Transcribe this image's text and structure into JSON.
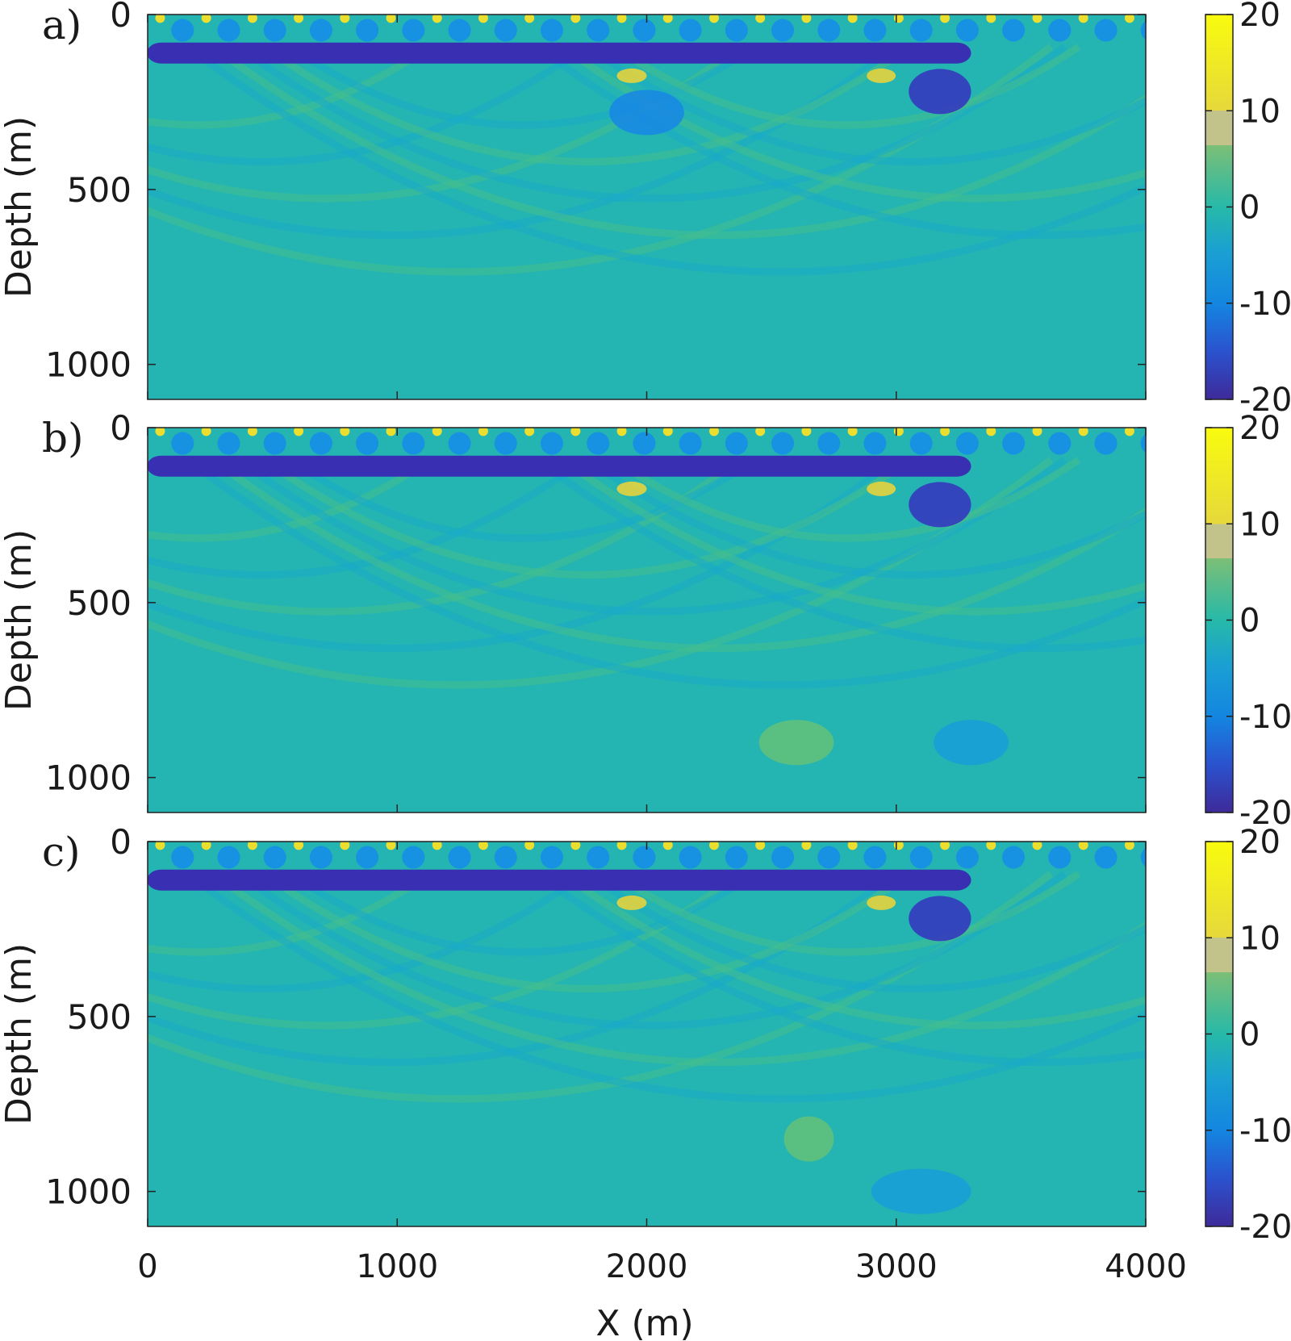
{
  "chart_data": [
    {
      "type": "heatmap",
      "panel_label": "a)",
      "title": "",
      "xlabel": "",
      "ylabel": "Depth (m)",
      "xlim": [
        0,
        4000
      ],
      "ylim": [
        0,
        1100
      ],
      "y_reversed": true,
      "x_ticks": [
        0,
        1000,
        2000,
        3000,
        4000
      ],
      "x_tick_labels_shown": false,
      "y_ticks": [
        0,
        500,
        1000
      ],
      "y_tick_labels": [
        "0",
        "500",
        "1000"
      ],
      "colorbar": {
        "range": [
          -20,
          20
        ],
        "ticks": [
          20,
          10,
          0,
          -10,
          -20
        ],
        "tick_labels": [
          "20",
          "10",
          "0",
          "-10",
          "-20"
        ],
        "colormap": "parula"
      },
      "features": [
        {
          "kind": "near-surface strong negative band",
          "x": [
            450,
            3300
          ],
          "z": [
            80,
            140
          ],
          "value": -19
        },
        {
          "kind": "surface source spots",
          "z": 10,
          "value": 15
        },
        {
          "kind": "positive lens",
          "x": [
            1880,
            2000
          ],
          "z": 175,
          "value": 13
        },
        {
          "kind": "positive lens",
          "x": [
            2920,
            2960
          ],
          "z": 175,
          "value": 13
        },
        {
          "kind": "negative anomaly",
          "x": [
            3050,
            3300
          ],
          "z": 220,
          "value": -18
        },
        {
          "kind": "negative anomaly",
          "x": [
            1850,
            2150
          ],
          "z": 280,
          "value": -9
        },
        {
          "kind": "smooth background",
          "value": 0
        }
      ]
    },
    {
      "type": "heatmap",
      "panel_label": "b)",
      "title": "",
      "xlabel": "",
      "ylabel": "Depth (m)",
      "xlim": [
        0,
        4000
      ],
      "ylim": [
        0,
        1100
      ],
      "y_reversed": true,
      "x_ticks": [
        0,
        1000,
        2000,
        3000,
        4000
      ],
      "x_tick_labels_shown": false,
      "y_ticks": [
        0,
        500,
        1000
      ],
      "y_tick_labels": [
        "0",
        "500",
        "1000"
      ],
      "colorbar": {
        "range": [
          -20,
          20
        ],
        "ticks": [
          20,
          10,
          0,
          -10,
          -20
        ],
        "tick_labels": [
          "20",
          "10",
          "0",
          "-10",
          "-20"
        ],
        "colormap": "parula"
      },
      "features": [
        {
          "kind": "near-surface strong negative band",
          "x": [
            450,
            3300
          ],
          "z": [
            80,
            140
          ],
          "value": -19
        },
        {
          "kind": "surface source spots",
          "z": 10,
          "value": 15
        },
        {
          "kind": "positive lens",
          "x": [
            1880,
            2000
          ],
          "z": 175,
          "value": 13
        },
        {
          "kind": "positive lens",
          "x": [
            2920,
            2960
          ],
          "z": 175,
          "value": 13
        },
        {
          "kind": "negative anomaly",
          "x": [
            3050,
            3300
          ],
          "z": 220,
          "value": -18
        },
        {
          "kind": "negative anomaly",
          "x": [
            3150,
            3450
          ],
          "z": 900,
          "value": -6
        },
        {
          "kind": "positive anomaly",
          "x": [
            2450,
            2750
          ],
          "z": 900,
          "value": 5
        },
        {
          "kind": "smooth background",
          "value": 0
        }
      ]
    },
    {
      "type": "heatmap",
      "panel_label": "c)",
      "title": "",
      "xlabel": "X  (m)",
      "ylabel": "Depth (m)",
      "xlim": [
        0,
        4000
      ],
      "ylim": [
        0,
        1100
      ],
      "y_reversed": true,
      "x_ticks": [
        0,
        1000,
        2000,
        3000,
        4000
      ],
      "x_tick_labels": [
        "0",
        "1000",
        "2000",
        "3000",
        "4000"
      ],
      "y_ticks": [
        0,
        500,
        1000
      ],
      "y_tick_labels": [
        "0",
        "500",
        "1000"
      ],
      "colorbar": {
        "range": [
          -20,
          20
        ],
        "ticks": [
          20,
          10,
          0,
          -10,
          -20
        ],
        "tick_labels": [
          "20",
          "10",
          "0",
          "-10",
          "-20"
        ],
        "colormap": "parula"
      },
      "features": [
        {
          "kind": "near-surface strong negative band",
          "x": [
            450,
            3300
          ],
          "z": [
            80,
            140
          ],
          "value": -19
        },
        {
          "kind": "surface source spots",
          "z": 10,
          "value": 15
        },
        {
          "kind": "positive lens",
          "x": [
            1880,
            2000
          ],
          "z": 175,
          "value": 13
        },
        {
          "kind": "positive lens",
          "x": [
            2920,
            2960
          ],
          "z": 175,
          "value": 13
        },
        {
          "kind": "negative anomaly",
          "x": [
            3050,
            3300
          ],
          "z": 220,
          "value": -18
        },
        {
          "kind": "positive anomaly",
          "x": [
            2550,
            2750
          ],
          "z": 850,
          "value": 5
        },
        {
          "kind": "negative anomaly",
          "x": [
            2900,
            3300
          ],
          "z": 1000,
          "value": -6
        },
        {
          "kind": "smooth background",
          "value": 0
        }
      ]
    }
  ]
}
